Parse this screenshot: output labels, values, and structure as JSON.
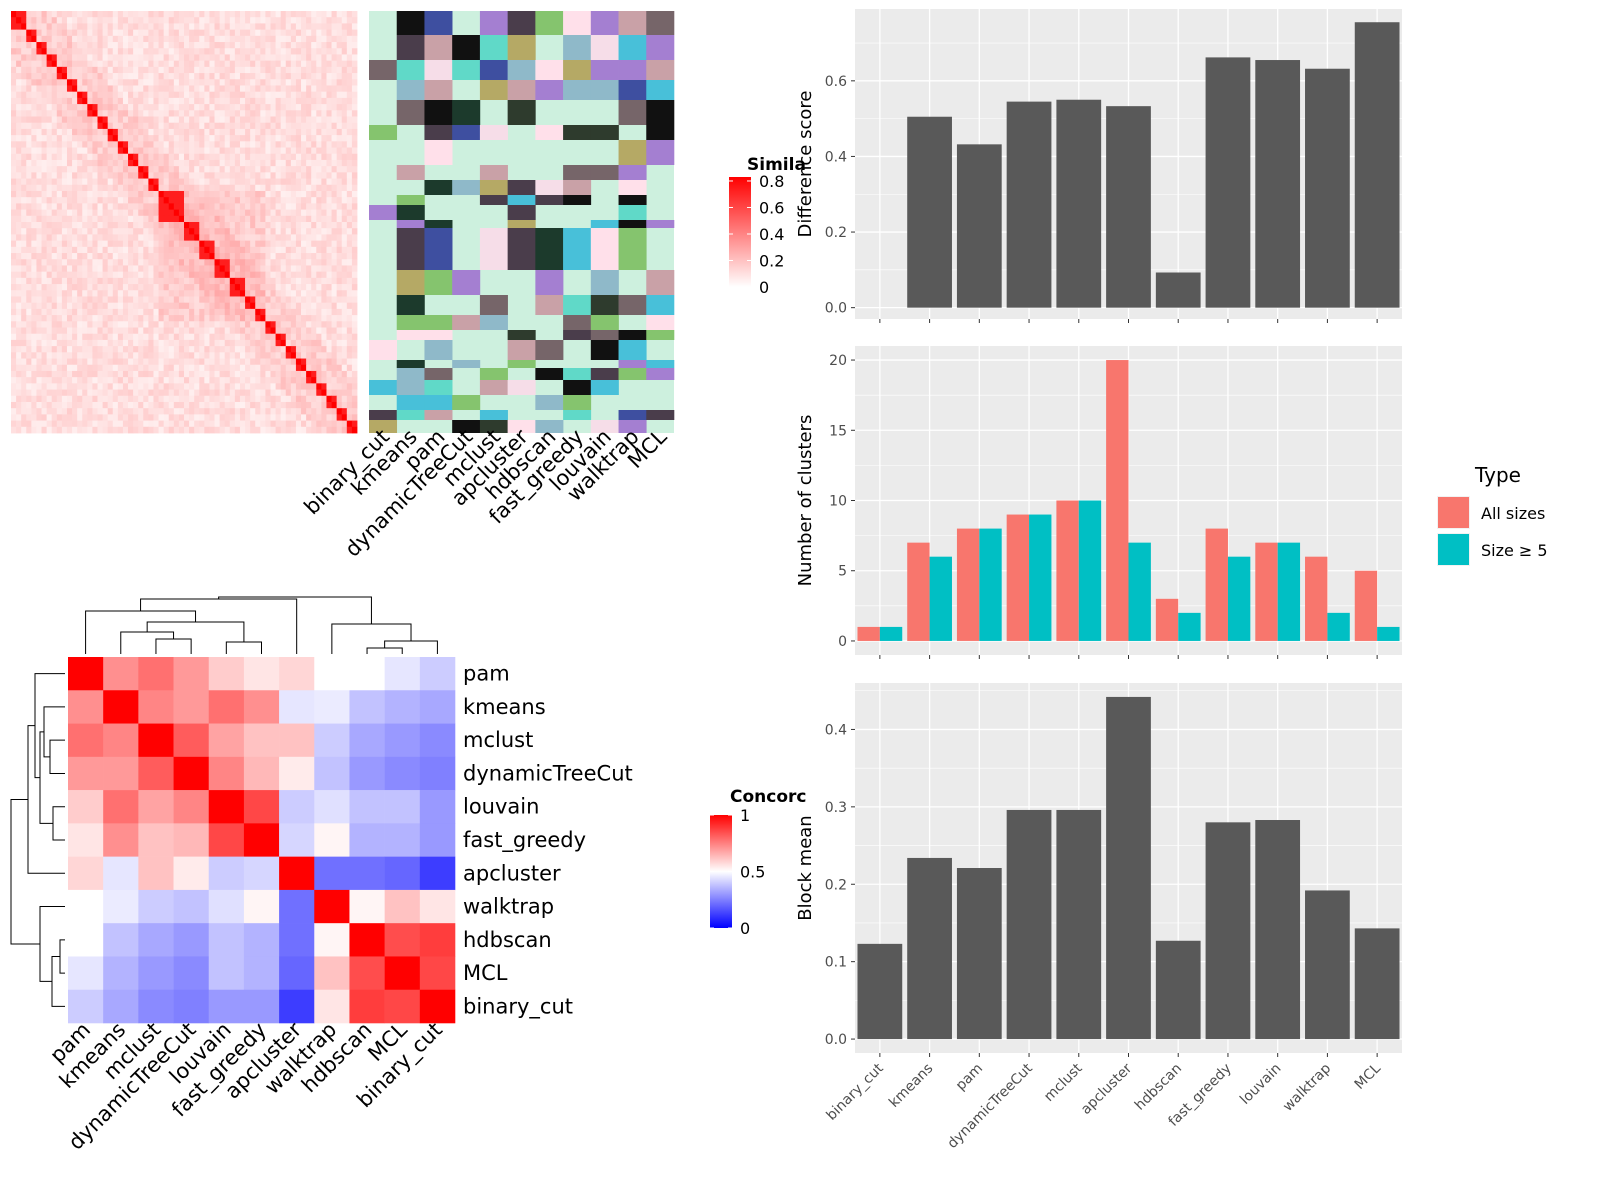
{
  "colors": {
    "bar": "#595959",
    "panel_bg": "#ebebeb",
    "grid": "#ffffff",
    "all_sizes": "#f8766d",
    "size_ge5": "#00bfc4",
    "sim_low": "#ffffff",
    "sim_high": "#ff0000",
    "conc_low": "#0000ff",
    "conc_mid": "#ffffff",
    "conc_high": "#ff0000"
  },
  "chart_data": [
    {
      "id": "similarity_heatmap",
      "type": "heatmap",
      "legend_title": "Simila",
      "legend_ticks": [
        "0",
        "0.2",
        "0.4",
        "0.6",
        "0.8"
      ],
      "legend_values": [
        0,
        0.2,
        0.4,
        0.6,
        0.8
      ],
      "n_terms": 68,
      "diagonal_blocks": [
        [
          0,
          3
        ],
        [
          3,
          5
        ],
        [
          5,
          7
        ],
        [
          7,
          9
        ],
        [
          9,
          11
        ],
        [
          11,
          13
        ],
        [
          13,
          15
        ],
        [
          15,
          17
        ],
        [
          17,
          19
        ],
        [
          19,
          21
        ],
        [
          21,
          23
        ],
        [
          23,
          25
        ],
        [
          25,
          27
        ],
        [
          27,
          29
        ],
        [
          29,
          34
        ],
        [
          34,
          37
        ],
        [
          37,
          40
        ],
        [
          40,
          43
        ],
        [
          43,
          46
        ],
        [
          46,
          48
        ],
        [
          48,
          50
        ],
        [
          50,
          52
        ],
        [
          52,
          54
        ],
        [
          54,
          56
        ],
        [
          56,
          58
        ],
        [
          58,
          60
        ],
        [
          60,
          62
        ],
        [
          62,
          64
        ],
        [
          64,
          66
        ],
        [
          66,
          68
        ]
      ],
      "annotation_columns": [
        "binary_cut",
        "kmeans",
        "pam",
        "dynamicTreeCut",
        "mclust",
        "apcluster",
        "hdbscan",
        "fast_greedy",
        "louvain",
        "walktrap",
        "MCL"
      ]
    },
    {
      "id": "concordance_heatmap",
      "type": "heatmap",
      "legend_title": "Concorc",
      "legend_ticks": [
        "0",
        "0.5",
        "1"
      ],
      "legend_values": [
        0,
        0.5,
        1
      ],
      "row_labels": [
        "pam",
        "kmeans",
        "mclust",
        "dynamicTreeCut",
        "louvain",
        "fast_greedy",
        "apcluster",
        "walktrap",
        "hdbscan",
        "MCL",
        "binary_cut"
      ],
      "col_labels": [
        "pam",
        "kmeans",
        "mclust",
        "dynamicTreeCut",
        "louvain",
        "fast_greedy",
        "apcluster",
        "walktrap",
        "hdbscan",
        "MCL",
        "binary_cut"
      ],
      "values": [
        [
          1.0,
          0.72,
          0.78,
          0.7,
          0.6,
          0.55,
          0.58,
          0.5,
          0.5,
          0.45,
          0.4
        ],
        [
          0.72,
          1.0,
          0.74,
          0.7,
          0.78,
          0.72,
          0.45,
          0.46,
          0.38,
          0.35,
          0.33
        ],
        [
          0.78,
          0.74,
          1.0,
          0.82,
          0.68,
          0.62,
          0.62,
          0.4,
          0.33,
          0.3,
          0.27
        ],
        [
          0.7,
          0.7,
          0.82,
          1.0,
          0.74,
          0.64,
          0.54,
          0.38,
          0.3,
          0.27,
          0.25
        ],
        [
          0.6,
          0.78,
          0.68,
          0.74,
          1.0,
          0.86,
          0.4,
          0.44,
          0.38,
          0.38,
          0.3
        ],
        [
          0.55,
          0.72,
          0.62,
          0.64,
          0.86,
          1.0,
          0.42,
          0.52,
          0.35,
          0.35,
          0.3
        ],
        [
          0.58,
          0.45,
          0.62,
          0.54,
          0.4,
          0.42,
          1.0,
          0.22,
          0.22,
          0.2,
          0.12
        ],
        [
          0.5,
          0.46,
          0.4,
          0.38,
          0.44,
          0.52,
          0.22,
          1.0,
          0.52,
          0.62,
          0.55
        ],
        [
          0.5,
          0.38,
          0.33,
          0.3,
          0.38,
          0.35,
          0.22,
          0.52,
          1.0,
          0.85,
          0.88
        ],
        [
          0.45,
          0.35,
          0.3,
          0.27,
          0.38,
          0.35,
          0.2,
          0.62,
          0.85,
          1.0,
          0.86
        ],
        [
          0.4,
          0.33,
          0.27,
          0.25,
          0.3,
          0.3,
          0.12,
          0.55,
          0.88,
          0.86,
          1.0
        ]
      ]
    },
    {
      "id": "difference_score",
      "type": "bar",
      "categories": [
        "binary_cut",
        "kmeans",
        "pam",
        "dynamicTreeCut",
        "mclust",
        "apcluster",
        "hdbscan",
        "fast_greedy",
        "louvain",
        "walktrap",
        "MCL"
      ],
      "values": [
        0.0,
        0.505,
        0.432,
        0.545,
        0.55,
        0.533,
        0.093,
        0.662,
        0.655,
        0.632,
        0.755
      ],
      "ylabel": "Difference score",
      "ylim": [
        -0.03,
        0.79
      ],
      "yticks": [
        0.0,
        0.2,
        0.4,
        0.6
      ],
      "ytick_labels": [
        "0.0",
        "0.2",
        "0.4",
        "0.6"
      ]
    },
    {
      "id": "number_of_clusters",
      "type": "bar",
      "categories": [
        "binary_cut",
        "kmeans",
        "pam",
        "dynamicTreeCut",
        "mclust",
        "apcluster",
        "hdbscan",
        "fast_greedy",
        "louvain",
        "walktrap",
        "MCL"
      ],
      "series": [
        {
          "name": "All sizes",
          "values": [
            1,
            7,
            8,
            9,
            10,
            20,
            3,
            8,
            7,
            6,
            5
          ]
        },
        {
          "name": "Size ≥ 5",
          "values": [
            1,
            6,
            8,
            9,
            10,
            7,
            2,
            6,
            7,
            2,
            1
          ]
        }
      ],
      "ylabel": "Number of clusters",
      "ylim": [
        -1,
        21
      ],
      "yticks": [
        0,
        5,
        10,
        15,
        20
      ],
      "ytick_labels": [
        "0",
        "5",
        "10",
        "15",
        "20"
      ],
      "legend_title": "Type",
      "legend_position": "right"
    },
    {
      "id": "block_mean",
      "type": "bar",
      "categories": [
        "binary_cut",
        "kmeans",
        "pam",
        "dynamicTreeCut",
        "mclust",
        "apcluster",
        "hdbscan",
        "fast_greedy",
        "louvain",
        "walktrap",
        "MCL"
      ],
      "values": [
        0.123,
        0.234,
        0.221,
        0.296,
        0.296,
        0.442,
        0.127,
        0.28,
        0.283,
        0.192,
        0.143
      ],
      "ylabel": "Block mean",
      "ylim": [
        -0.018,
        0.46
      ],
      "yticks": [
        0.0,
        0.1,
        0.2,
        0.3,
        0.4
      ],
      "ytick_labels": [
        "0.0",
        "0.1",
        "0.2",
        "0.3",
        "0.4"
      ]
    }
  ]
}
